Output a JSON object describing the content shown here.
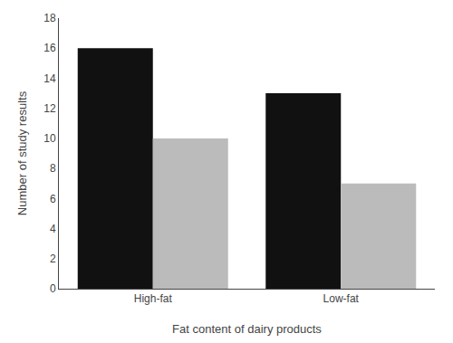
{
  "chart_data": {
    "type": "bar",
    "categories": [
      "High-fat",
      "Low-fat"
    ],
    "series": [
      {
        "color": "#111111",
        "values": [
          16,
          13
        ]
      },
      {
        "color": "#bbbbbb",
        "values": [
          10,
          7
        ]
      }
    ],
    "xlabel": "Fat content of dairy products",
    "ylabel": "Number of study results",
    "ylim": [
      0,
      18
    ],
    "yticks": [
      0,
      2,
      4,
      6,
      8,
      10,
      12,
      14,
      16,
      18
    ],
    "grid": false
  }
}
